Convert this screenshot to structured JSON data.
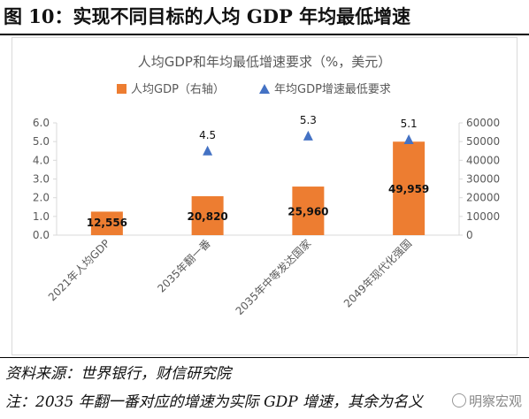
{
  "figure_title": "图 10：实现不同目标的人均 GDP 年均最低增速",
  "notes": {
    "source": "资料来源：世界银行，财信研究院",
    "note": "注：2035 年翻一番对应的增速为实际 GDP 增速，其余为名义"
  },
  "watermark": "明察宏观",
  "colors": {
    "bar": "#ED7D31",
    "marker": "#4472C4",
    "text": "#595959",
    "axis": "#D9D9D9"
  },
  "chart_data": {
    "type": "bar",
    "title": "人均GDP和年均最低增速要求（%，美元）",
    "categories": [
      "2021年人均GDP",
      "2035年翻一番",
      "2035年中等发达国家",
      "2049年现代化强国"
    ],
    "legend_position": "top",
    "grid": false,
    "series": [
      {
        "name": "人均GDP（右轴）",
        "type": "bar",
        "axis": "right",
        "values": [
          12556,
          20820,
          25960,
          49959
        ],
        "labels": [
          "12,556",
          "20,820",
          "25,960",
          "49,959"
        ]
      },
      {
        "name": "年均GDP增速最低要求",
        "type": "scatter",
        "marker": "triangle",
        "axis": "left",
        "values": [
          null,
          4.5,
          5.3,
          5.1
        ],
        "labels": [
          "",
          "4.5",
          "5.3",
          "5.1"
        ]
      }
    ],
    "y_left": {
      "min": 0,
      "max": 6,
      "ticks": [
        "0.0",
        "1.0",
        "2.0",
        "3.0",
        "4.0",
        "5.0",
        "6.0"
      ]
    },
    "y_right": {
      "min": 0,
      "max": 60000,
      "ticks": [
        "0",
        "10000",
        "20000",
        "30000",
        "40000",
        "50000",
        "60000"
      ]
    }
  }
}
